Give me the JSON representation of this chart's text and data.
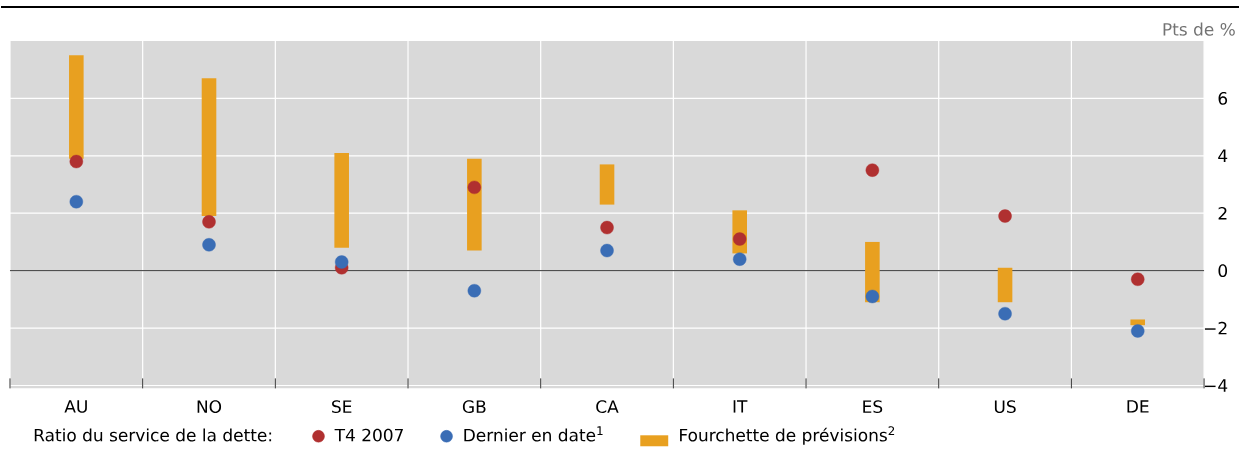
{
  "chart_data": {
    "type": "scatter",
    "categories": [
      "AU",
      "NO",
      "SE",
      "GB",
      "CA",
      "IT",
      "ES",
      "US",
      "DE"
    ],
    "ylabel": "Pts de %",
    "legend_title": "Ratio du service de la dette:",
    "series": [
      {
        "name": "Fourchette de prévisions$^{2}$",
        "type": "bar",
        "color": "#e8a020",
        "base": [
          3.9,
          1.9,
          0.8,
          0.7,
          2.3,
          0.6,
          -1.1,
          -1.1,
          -1.9
        ],
        "values": [
          3.6,
          4.8,
          3.3,
          3.2,
          1.4,
          1.5,
          2.1,
          1.2,
          0.2
        ]
      },
      {
        "name": "T4 2007",
        "color": "#b03030",
        "values": [
          3.8,
          1.7,
          0.1,
          2.9,
          1.5,
          1.1,
          3.5,
          1.9,
          -0.3
        ]
      },
      {
        "name": "Dernier en date$^{1}$",
        "color": "#3a6db5",
        "values": [
          2.4,
          0.9,
          0.3,
          -0.7,
          0.7,
          0.4,
          -0.9,
          -1.5,
          -2.1
        ]
      }
    ],
    "ylim": [
      -4.1,
      8
    ],
    "yticks": [
      {
        "value": -4,
        "label": "−4"
      },
      {
        "value": -2,
        "label": "−2"
      },
      0,
      2,
      4,
      6
    ],
    "ref_lines": [
      {
        "axis": "y",
        "value": 0,
        "color": "#333333"
      }
    ],
    "grid": true,
    "legend": "bottom",
    "marker": "circle"
  }
}
